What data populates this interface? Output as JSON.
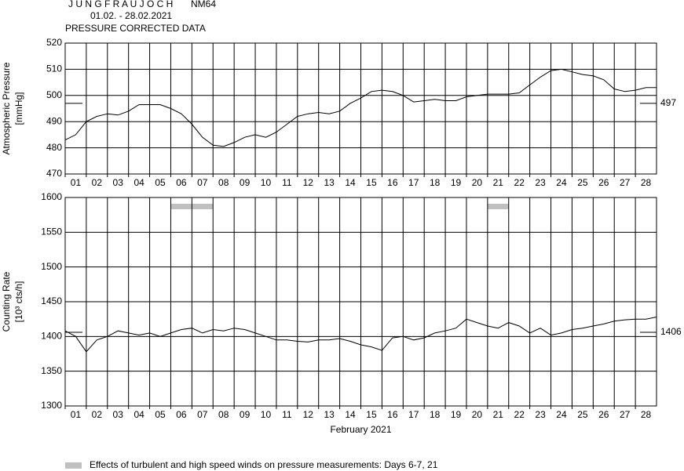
{
  "header": {
    "title": "J U N G F R A U J O C H",
    "station": "NM64",
    "period": "01.02. - 28.02.2021",
    "subtitle": "PRESSURE CORRECTED DATA"
  },
  "chart_data": [
    {
      "type": "line",
      "ylabel": [
        "Atmospheric Pressure",
        "[mmHg]"
      ],
      "categories": [
        "01",
        "02",
        "03",
        "04",
        "05",
        "06",
        "07",
        "08",
        "09",
        "10",
        "11",
        "12",
        "13",
        "14",
        "15",
        "16",
        "17",
        "18",
        "19",
        "20",
        "21",
        "22",
        "23",
        "24",
        "25",
        "26",
        "27",
        "28"
      ],
      "xlim": [
        1,
        29
      ],
      "ylim": [
        470,
        520
      ],
      "yticks": [
        470,
        480,
        490,
        500,
        510,
        520
      ],
      "grid": true,
      "series": [
        {
          "color": "#000000",
          "x": [
            1,
            1.5,
            2,
            2.5,
            3,
            3.5,
            4,
            4.5,
            5,
            5.5,
            6,
            6.5,
            7,
            7.5,
            8,
            8.5,
            9,
            9.5,
            10,
            10.5,
            11,
            11.5,
            12,
            12.5,
            13,
            13.5,
            14,
            14.5,
            15,
            15.5,
            16,
            16.5,
            17,
            17.5,
            18,
            18.5,
            19,
            19.5,
            20,
            20.5,
            21,
            21.5,
            22,
            22.5,
            23,
            23.5,
            24,
            24.5,
            25,
            25.5,
            26,
            26.5,
            27,
            27.5,
            28,
            28.5,
            29
          ],
          "values": [
            483,
            485,
            490,
            492,
            493,
            492.5,
            494,
            496.5,
            496.5,
            496.5,
            495,
            493,
            489,
            484,
            481,
            480.5,
            482,
            484,
            485,
            484,
            486,
            489,
            492,
            493,
            493.5,
            493,
            494,
            497,
            499,
            501.5,
            502,
            501.5,
            500,
            497.5,
            498,
            498.5,
            498,
            498,
            499.5,
            500,
            500.5,
            500.5,
            500.5,
            501,
            504,
            507,
            509.5,
            510,
            509,
            508,
            507.5,
            506,
            502.5,
            501.5,
            502,
            503,
            503
          ]
        }
      ],
      "reference": 497
    },
    {
      "type": "line",
      "ylabel": [
        "Counting Rate",
        "[10³ cts/h]"
      ],
      "xlabel": "February 2021",
      "categories": [
        "01",
        "02",
        "03",
        "04",
        "05",
        "06",
        "07",
        "08",
        "09",
        "10",
        "11",
        "12",
        "13",
        "14",
        "15",
        "16",
        "17",
        "18",
        "19",
        "20",
        "21",
        "22",
        "23",
        "24",
        "25",
        "26",
        "27",
        "28"
      ],
      "xlim": [
        1,
        29
      ],
      "ylim": [
        1300,
        1600
      ],
      "yticks": [
        1300,
        1350,
        1400,
        1450,
        1500,
        1550,
        1600
      ],
      "grid": true,
      "series": [
        {
          "color": "#000000",
          "x": [
            1,
            1.5,
            2,
            2.5,
            3,
            3.5,
            4,
            4.5,
            5,
            5.5,
            6,
            6.5,
            7,
            7.5,
            8,
            8.5,
            9,
            9.5,
            10,
            10.5,
            11,
            11.5,
            12,
            12.5,
            13,
            13.5,
            14,
            14.5,
            15,
            15.5,
            16,
            16.5,
            17,
            17.5,
            18,
            18.5,
            19,
            19.5,
            20,
            20.5,
            21,
            21.5,
            22,
            22.5,
            23,
            23.5,
            24,
            24.5,
            25,
            25.5,
            26,
            26.5,
            27,
            27.5,
            28,
            28.5,
            29
          ],
          "values": [
            1408,
            1400,
            1378,
            1395,
            1400,
            1408,
            1405,
            1402,
            1405,
            1400,
            1405,
            1410,
            1412,
            1405,
            1410,
            1408,
            1412,
            1410,
            1405,
            1400,
            1395,
            1395,
            1393,
            1392,
            1395,
            1395,
            1397,
            1393,
            1388,
            1385,
            1380,
            1398,
            1400,
            1395,
            1398,
            1405,
            1408,
            1412,
            1425,
            1420,
            1415,
            1412,
            1420,
            1415,
            1405,
            1412,
            1402,
            1405,
            1410,
            1412,
            1415,
            1418,
            1422,
            1424,
            1425,
            1425,
            1428
          ]
        }
      ],
      "reference": 1406,
      "wind_spans": [
        {
          "start": 6,
          "end": 8
        },
        {
          "start": 21,
          "end": 22
        }
      ],
      "wind_color": "#c0c0c0"
    }
  ],
  "legend": {
    "label": "Effects of turbulent and high speed winds on pressure measurements: Days 6-7, 21"
  }
}
